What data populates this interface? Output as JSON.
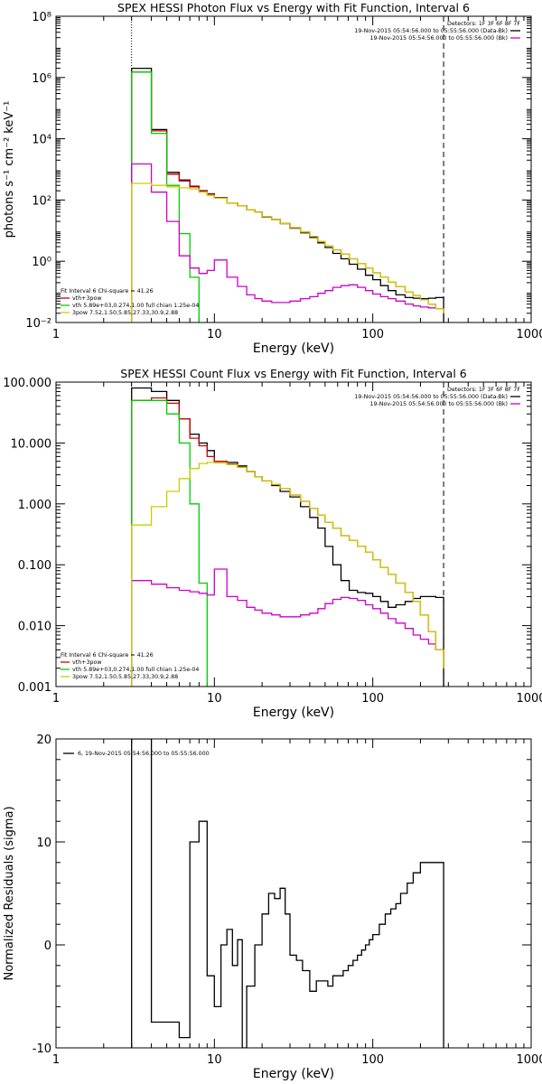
{
  "chart_data": [
    {
      "type": "line",
      "title": "SPEX HESSI Photon Flux vs Energy with Fit Function, Interval 6",
      "xlabel": "Energy (keV)",
      "ylabel": "photons s⁻¹ cm⁻² keV⁻¹",
      "xscale": "log",
      "yscale": "log",
      "xlim": [
        1,
        1000
      ],
      "ylim": [
        0.01,
        100000000
      ],
      "xticks": [
        1,
        10,
        100,
        1000
      ],
      "xtick_labels": [
        "1",
        "10",
        "100",
        "1000"
      ],
      "yticks": [
        0.01,
        1,
        100,
        10000,
        1000000,
        100000000
      ],
      "ytick_labels": [
        "10⁻²",
        "10⁰",
        "10²",
        "10⁴",
        "10⁶",
        "10⁸"
      ],
      "vlines": [
        {
          "x": 3,
          "style": "dotted"
        },
        {
          "x": 280,
          "style": "dashed"
        }
      ],
      "header_right": [
        "Detectors: 1F 3F 6F 8F 7F",
        "19-Nov-2015 05:54:56.000 to 05:55:56.000 (Data-Bk)",
        "19-Nov-2015 05:54:56.000 to 05:55:56.000 (Bk)"
      ],
      "header_colors": [
        "#000000",
        "#cc00cc"
      ],
      "legend_lines": [
        "Fit Interval  6    Chi-square = 41.26",
        "vth+3pow",
        "vth 5.89e+03,0.274,1.00  full chian 1.25e-04",
        "3pow 7.52,1.50,5.85,27.33,30.9,2.88"
      ],
      "legend_colors": [
        "#cc0000",
        "#00cc00",
        "#cccc00"
      ],
      "series": [
        {
          "color": "#000000",
          "x": [
            3,
            4,
            5,
            6,
            7,
            8,
            9,
            10,
            12,
            14,
            16,
            18,
            20,
            23,
            26,
            30,
            35,
            40,
            45,
            50,
            56,
            63,
            71,
            80,
            90,
            100,
            112,
            125,
            140,
            160,
            180,
            200,
            225,
            250,
            280
          ],
          "y": [
            2000000,
            20000,
            800,
            450,
            280,
            200,
            160,
            120,
            80,
            65,
            48,
            40,
            28,
            23,
            17,
            12,
            8.5,
            6,
            4,
            2.8,
            1.8,
            1.2,
            0.8,
            0.55,
            0.35,
            0.25,
            0.16,
            0.11,
            0.08,
            0.065,
            0.062,
            0.06,
            0.062,
            0.065,
            0.067
          ]
        },
        {
          "color": "#cc0000",
          "x": [
            3,
            4,
            5,
            6,
            7,
            8,
            9,
            10,
            12,
            14,
            16,
            18,
            20,
            23,
            26,
            30,
            35,
            40,
            45,
            50,
            56,
            63,
            71,
            80,
            90,
            100,
            112,
            125,
            140,
            160,
            180,
            200,
            225,
            250,
            280
          ],
          "y": [
            1500000,
            18000,
            700,
            420,
            270,
            195,
            155,
            118,
            80,
            65,
            48,
            40,
            29,
            23,
            17,
            12.5,
            9,
            6.5,
            4.5,
            3.2,
            2.3,
            1.7,
            1.2,
            0.85,
            0.6,
            0.42,
            0.3,
            0.21,
            0.15,
            0.1,
            0.075,
            0.055,
            0.04,
            0.028,
            0.02
          ]
        },
        {
          "color": "#00cc00",
          "x": [
            3,
            4,
            5,
            6,
            7,
            8
          ],
          "y": [
            1500000,
            15000,
            300,
            8,
            0.3,
            0.01
          ]
        },
        {
          "color": "#cc00cc",
          "x": [
            3,
            4,
            5,
            6,
            7,
            8,
            9,
            10,
            12,
            14,
            16,
            18,
            20,
            23,
            26,
            30,
            35,
            40,
            45,
            50,
            56,
            63,
            71,
            80,
            90,
            100,
            112,
            125,
            140,
            160,
            180,
            200,
            225,
            250,
            280
          ],
          "y": [
            1500,
            180,
            20,
            1.5,
            0.6,
            0.4,
            0.5,
            1.1,
            0.3,
            0.15,
            0.08,
            0.06,
            0.05,
            0.045,
            0.045,
            0.05,
            0.06,
            0.07,
            0.09,
            0.11,
            0.14,
            0.16,
            0.17,
            0.14,
            0.11,
            0.085,
            0.07,
            0.06,
            0.05,
            0.04,
            0.035,
            0.032,
            0.03,
            0.028,
            0.027
          ]
        },
        {
          "color": "#cccc00",
          "x": [
            3,
            4,
            5,
            6,
            7,
            8,
            9,
            10,
            12,
            14,
            16,
            18,
            20,
            23,
            26,
            30,
            35,
            40,
            45,
            50,
            56,
            63,
            71,
            80,
            90,
            100,
            112,
            125,
            140,
            160,
            180,
            200,
            225,
            250,
            280
          ],
          "y": [
            350,
            300,
            270,
            250,
            230,
            180,
            140,
            115,
            80,
            65,
            48,
            40,
            29,
            23,
            17,
            12.5,
            9,
            6.5,
            4.5,
            3.2,
            2.3,
            1.7,
            1.2,
            0.85,
            0.6,
            0.42,
            0.3,
            0.21,
            0.15,
            0.1,
            0.075,
            0.055,
            0.04,
            0.028,
            0.02
          ]
        }
      ]
    },
    {
      "type": "line",
      "title": "SPEX HESSI Count Flux vs Energy with Fit Function, Interval 6",
      "xlabel": "Energy (keV)",
      "ylabel": "",
      "xscale": "log",
      "yscale": "log",
      "xlim": [
        1,
        1000
      ],
      "ylim": [
        0.001,
        100
      ],
      "xticks": [
        1,
        10,
        100,
        1000
      ],
      "xtick_labels": [
        "1",
        "10",
        "100",
        "1000"
      ],
      "yticks": [
        0.001,
        0.01,
        0.1,
        1,
        10,
        100
      ],
      "ytick_labels": [
        "0.001",
        "0.010",
        "0.100",
        "1.000",
        "10.000",
        "100.000"
      ],
      "vlines": [
        {
          "x": 3,
          "style": "dotted"
        },
        {
          "x": 280,
          "style": "dashed"
        }
      ],
      "header_right": [
        "Detectors: 1F 3F 6F 8F 7F",
        "19-Nov-2015 05:54:56.000 to 05:55:56.000 (Data-Bk)",
        "19-Nov-2015 05:54:56.000 to 05:55:56.000 (Bk)"
      ],
      "header_colors": [
        "#000000",
        "#cc00cc"
      ],
      "legend_lines": [
        "Fit Interval  6    Chi-square = 41.26",
        "vth+3pow",
        "vth 5.89e+03,0.274,1.00  full chian 1.25e-04",
        "3pow 7.52,1.50,5.85,27.33,30.9,2.88"
      ],
      "legend_colors": [
        "#cc0000",
        "#00cc00",
        "#cccc00"
      ],
      "series": [
        {
          "color": "#000000",
          "x": [
            3,
            4,
            5,
            6,
            7,
            8,
            9,
            10,
            12,
            14,
            16,
            18,
            20,
            23,
            26,
            30,
            35,
            40,
            45,
            50,
            56,
            63,
            71,
            80,
            90,
            100,
            112,
            125,
            140,
            160,
            180,
            200,
            225,
            250,
            280
          ],
          "y": [
            80,
            70,
            50,
            25,
            14,
            10,
            7.5,
            5,
            4.8,
            4.2,
            3.4,
            2.8,
            2.4,
            2,
            1.6,
            1.3,
            0.9,
            0.6,
            0.4,
            0.2,
            0.1,
            0.055,
            0.038,
            0.035,
            0.034,
            0.03,
            0.025,
            0.02,
            0.022,
            0.025,
            0.028,
            0.03,
            0.03,
            0.029,
            0.027
          ]
        },
        {
          "color": "#cc0000",
          "x": [
            3,
            4,
            5,
            6,
            7,
            8,
            9,
            10,
            12,
            14,
            16,
            18,
            20,
            23,
            26,
            30,
            35,
            40,
            45,
            50,
            56,
            63,
            71,
            80,
            90,
            100,
            112,
            125,
            140,
            160,
            180,
            200,
            225,
            250,
            280
          ],
          "y": [
            50,
            55,
            45,
            25,
            12,
            9,
            6,
            5,
            4.5,
            4,
            3.4,
            2.8,
            2.4,
            2.1,
            1.8,
            1.4,
            1.1,
            0.85,
            0.65,
            0.5,
            0.4,
            0.3,
            0.25,
            0.2,
            0.16,
            0.12,
            0.09,
            0.07,
            0.05,
            0.035,
            0.025,
            0.015,
            0.008,
            0.004,
            0.002
          ]
        },
        {
          "color": "#00cc00",
          "x": [
            3,
            4,
            5,
            6,
            7,
            8,
            9,
            10
          ],
          "y": [
            50,
            50,
            30,
            10,
            1,
            0.05,
            0.001,
            0.0005
          ]
        },
        {
          "color": "#cc00cc",
          "x": [
            3,
            4,
            5,
            6,
            7,
            8,
            9,
            10,
            12,
            14,
            16,
            18,
            20,
            23,
            26,
            30,
            35,
            40,
            45,
            50,
            56,
            63,
            71,
            80,
            90,
            100,
            112,
            125,
            140,
            160,
            180,
            200,
            225,
            250,
            280
          ],
          "y": [
            0.055,
            0.048,
            0.042,
            0.038,
            0.036,
            0.034,
            0.032,
            0.085,
            0.03,
            0.026,
            0.02,
            0.018,
            0.016,
            0.015,
            0.014,
            0.014,
            0.015,
            0.016,
            0.019,
            0.023,
            0.027,
            0.029,
            0.028,
            0.026,
            0.022,
            0.019,
            0.016,
            0.013,
            0.011,
            0.009,
            0.007,
            0.006,
            0.005,
            0.004,
            0.004
          ]
        },
        {
          "color": "#cccc00",
          "x": [
            3,
            4,
            5,
            6,
            7,
            8,
            9,
            10,
            12,
            14,
            16,
            18,
            20,
            23,
            26,
            30,
            35,
            40,
            45,
            50,
            56,
            63,
            71,
            80,
            90,
            100,
            112,
            125,
            140,
            160,
            180,
            200,
            225,
            250,
            280
          ],
          "y": [
            0.45,
            0.9,
            1.6,
            2.6,
            3.8,
            4.6,
            4.8,
            4.7,
            4.4,
            4,
            3.4,
            2.8,
            2.4,
            2.1,
            1.8,
            1.4,
            1.1,
            0.85,
            0.65,
            0.5,
            0.4,
            0.3,
            0.25,
            0.2,
            0.16,
            0.12,
            0.09,
            0.07,
            0.05,
            0.035,
            0.025,
            0.015,
            0.008,
            0.004,
            0.002
          ]
        }
      ]
    },
    {
      "type": "line",
      "title": "",
      "xlabel": "Energy (keV)",
      "ylabel": "Normalized Residuals (sigma)",
      "xscale": "log",
      "yscale": "linear",
      "xlim": [
        1,
        1000
      ],
      "ylim": [
        -10,
        20
      ],
      "xticks": [
        1,
        10,
        100,
        1000
      ],
      "xtick_labels": [
        "1",
        "10",
        "100",
        "1000"
      ],
      "yticks": [
        -10,
        0,
        10,
        20
      ],
      "ytick_labels": [
        "-10",
        "0",
        "10",
        "20"
      ],
      "legend_lines": [
        "6, 19-Nov-2015 05:54:56.000 to 05:55:56.000"
      ],
      "legend_colors": [
        "#000000"
      ],
      "series": [
        {
          "color": "#000000",
          "x": [
            3,
            4,
            5,
            6,
            7,
            8,
            9,
            10,
            11,
            12,
            13,
            14,
            15,
            16,
            18,
            20,
            22,
            24,
            26,
            28,
            30,
            33,
            36,
            40,
            44,
            48,
            52,
            56,
            60,
            65,
            70,
            75,
            80,
            85,
            90,
            95,
            100,
            110,
            120,
            130,
            140,
            150,
            165,
            180,
            200,
            220,
            240,
            260,
            280
          ],
          "y": [
            20,
            -7.5,
            -7.5,
            -9,
            10,
            12,
            -3,
            -6,
            0,
            1.5,
            -2,
            0.5,
            -10,
            -4,
            0,
            3,
            5,
            4.5,
            5.5,
            3,
            -1,
            -1.5,
            -2.5,
            -4.5,
            -3.5,
            -3.5,
            -4,
            -3,
            -3,
            -2.5,
            -2,
            -1.5,
            -1,
            -0.5,
            0,
            0.5,
            1,
            2,
            3,
            3.5,
            4,
            5,
            6,
            7,
            8,
            8,
            8,
            8,
            8
          ]
        }
      ]
    }
  ]
}
